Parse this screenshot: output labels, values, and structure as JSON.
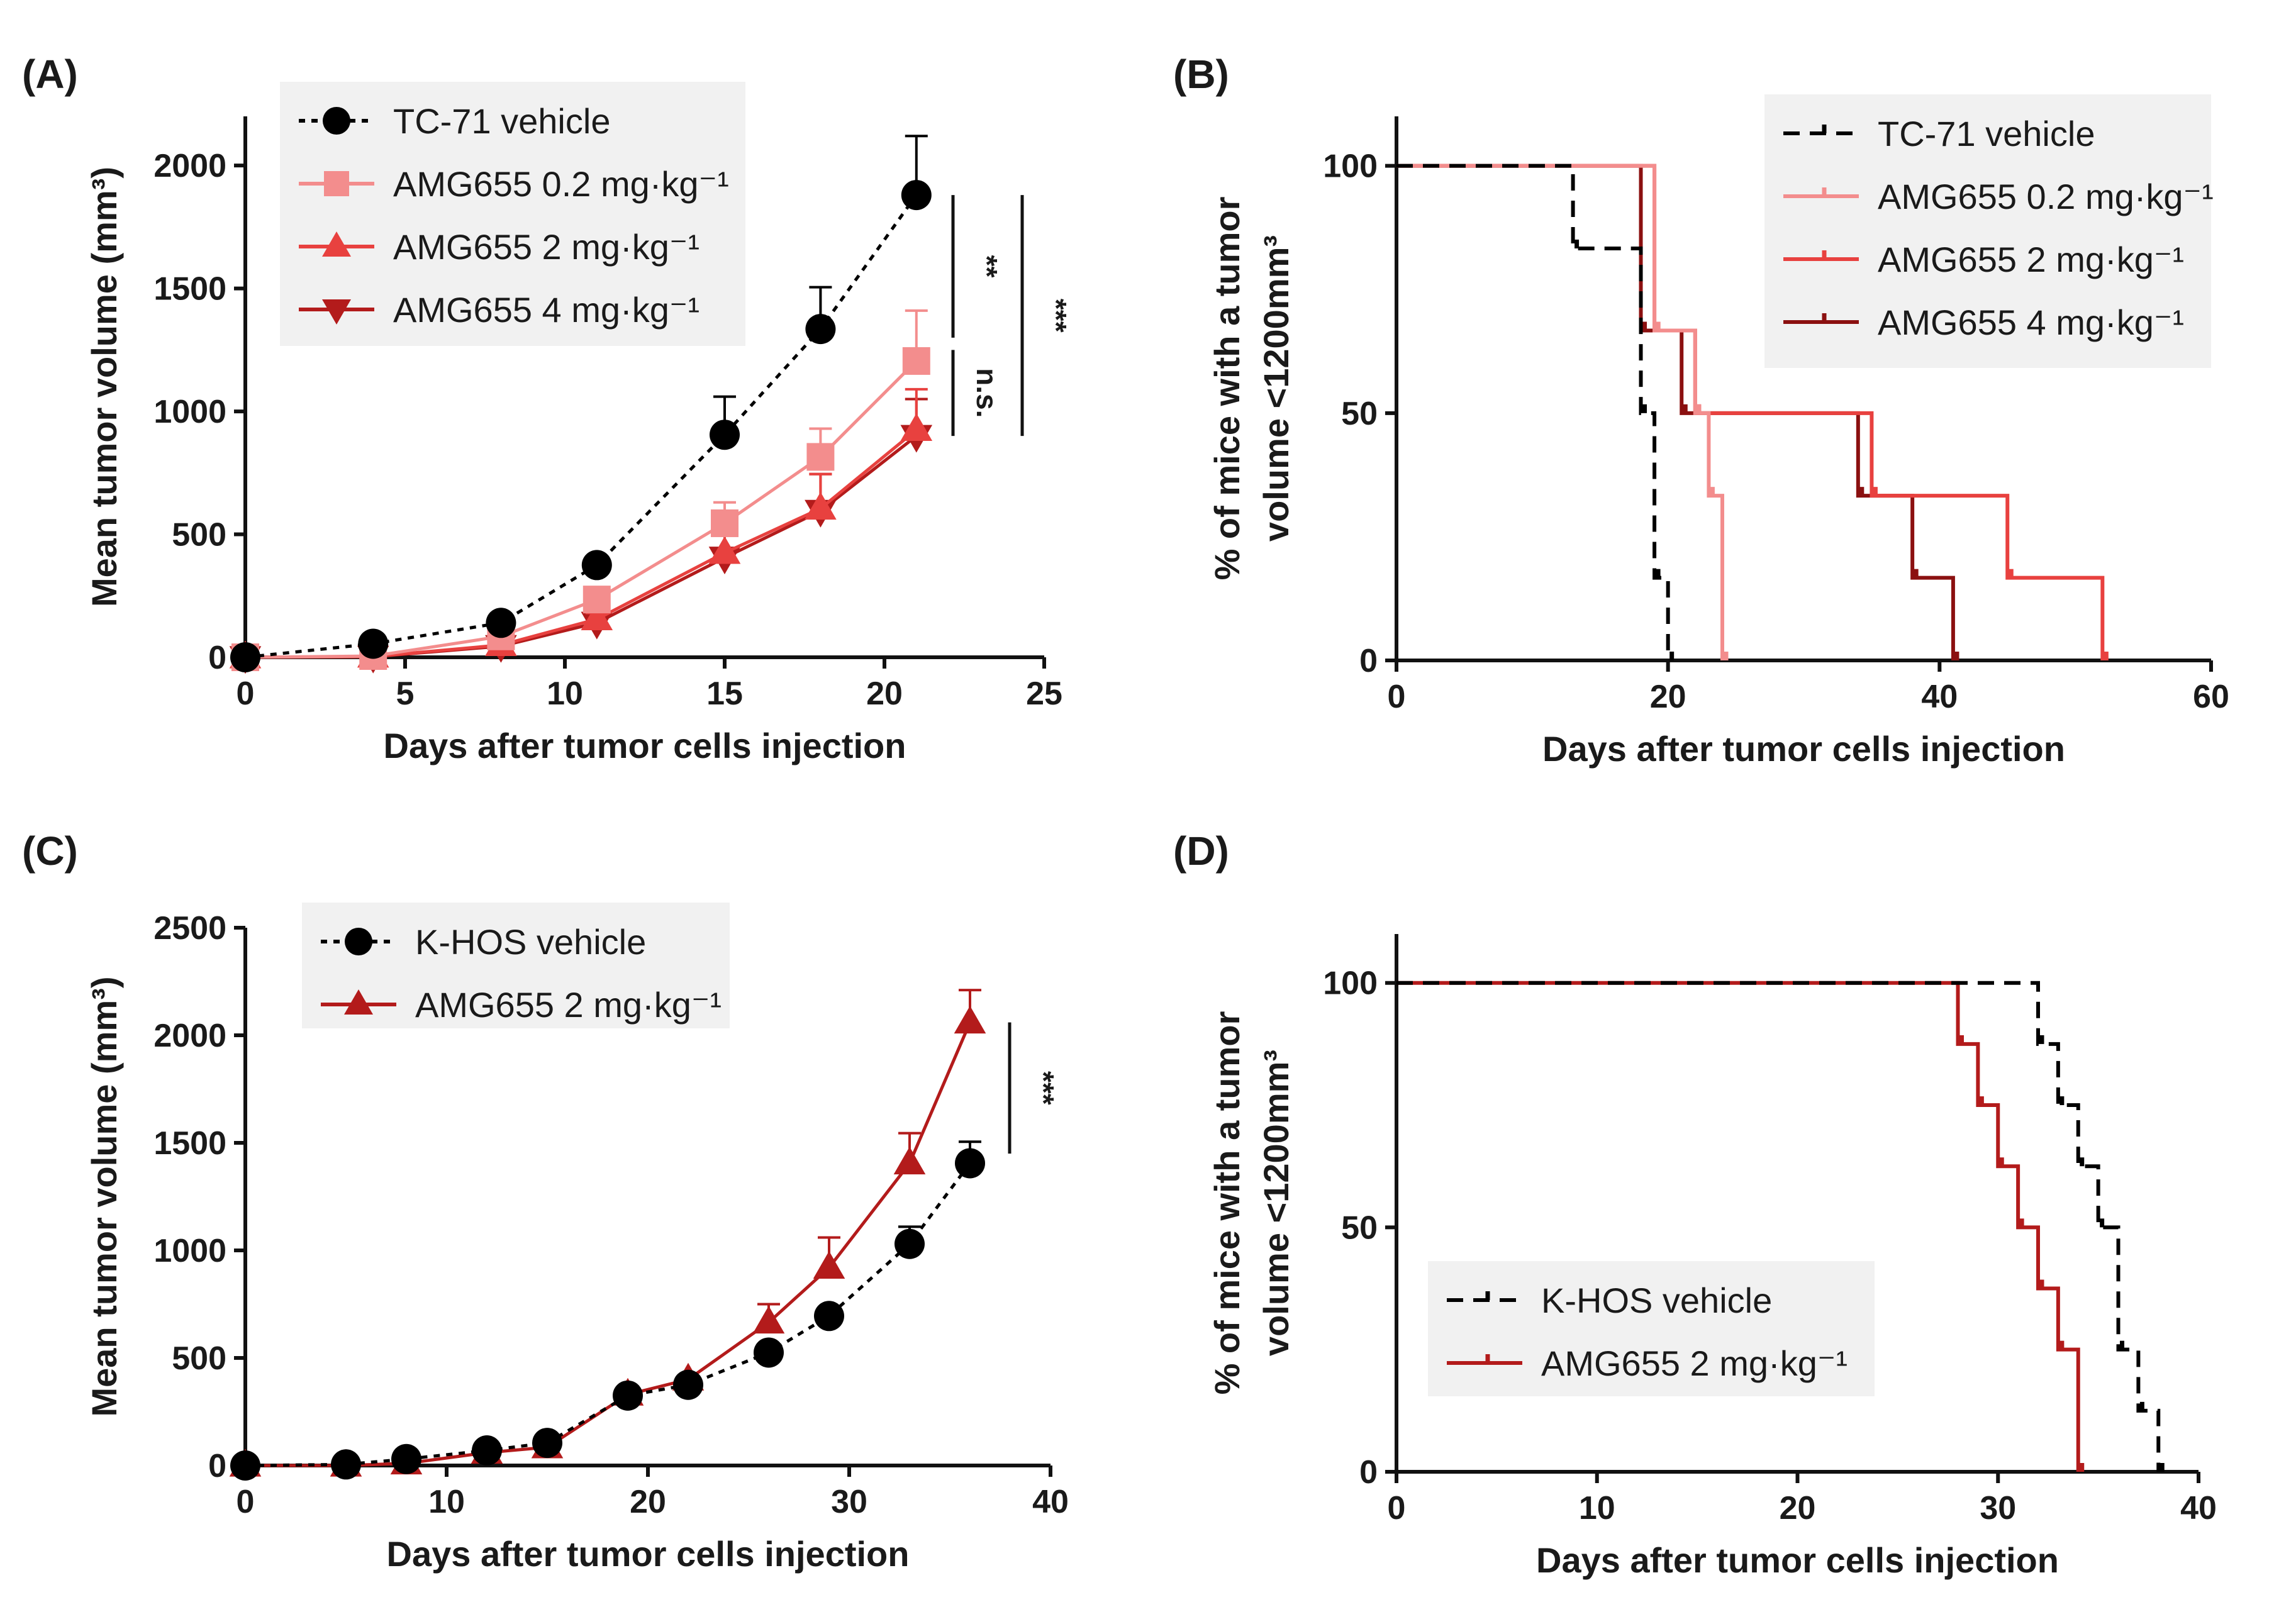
{
  "chart_data": [
    {
      "panel": "(A)",
      "type": "line",
      "title": "",
      "xlabel": "Days after tumor cells injection",
      "ylabel": "Mean tumor volume (mm³)",
      "xlim": [
        0,
        25
      ],
      "ylim": [
        0,
        2200
      ],
      "xticks": [
        0,
        5,
        10,
        15,
        20,
        25
      ],
      "yticks": [
        0,
        500,
        1000,
        1500,
        2000
      ],
      "legend_position": "top-left",
      "series": [
        {
          "name": "TC-71 vehicle",
          "color": "#000000",
          "marker": "circle",
          "dash": "dotted",
          "x": [
            0,
            4,
            8,
            11,
            15,
            18,
            21
          ],
          "y": [
            0,
            55,
            140,
            375,
            905,
            1335,
            1880
          ],
          "err": [
            0,
            8,
            15,
            20,
            155,
            170,
            240
          ]
        },
        {
          "name": "AMG655 0.2 mg·kg⁻¹",
          "color": "#f38d8d",
          "marker": "square",
          "dash": "solid",
          "x": [
            0,
            4,
            8,
            11,
            15,
            18,
            21
          ],
          "y": [
            0,
            5,
            85,
            235,
            545,
            815,
            1205
          ],
          "err": [
            0,
            5,
            15,
            30,
            85,
            115,
            205
          ]
        },
        {
          "name": "AMG655 2 mg·kg⁻¹",
          "color": "#e8413f",
          "marker": "triangle-up",
          "dash": "solid",
          "x": [
            0,
            4,
            8,
            11,
            15,
            18,
            21
          ],
          "y": [
            0,
            3,
            50,
            155,
            425,
            605,
            925
          ],
          "err": [
            0,
            3,
            10,
            25,
            90,
            140,
            165
          ]
        },
        {
          "name": "AMG655 4 mg·kg⁻¹",
          "color": "#b31b1b",
          "marker": "triangle-down",
          "dash": "solid",
          "x": [
            0,
            4,
            8,
            11,
            15,
            18,
            21
          ],
          "y": [
            0,
            2,
            45,
            140,
            405,
            595,
            900
          ],
          "err": [
            0,
            2,
            10,
            20,
            120,
            150,
            150
          ]
        }
      ],
      "annotations": [
        {
          "text": "**",
          "y_from": 1880,
          "y_to": 1300
        },
        {
          "text": "n.s.",
          "y_from": 1250,
          "y_to": 900
        },
        {
          "text": "***",
          "y_from": 1880,
          "y_to": 900
        }
      ]
    },
    {
      "panel": "(B)",
      "type": "line",
      "title": "",
      "xlabel": "Days after tumor cells injection",
      "ylabel_lines": [
        "% of mice with a tumor",
        "volume <1200mm³"
      ],
      "xlim": [
        0,
        60
      ],
      "ylim": [
        0,
        110
      ],
      "xticks": [
        0,
        20,
        40,
        60
      ],
      "yticks": [
        0,
        50,
        100
      ],
      "legend_position": "top-right",
      "series": [
        {
          "name": "TC-71 vehicle",
          "color": "#000000",
          "dash": "dashed",
          "x": [
            0,
            13,
            18,
            19,
            20
          ],
          "y": [
            100,
            83.3,
            50,
            16.7,
            0
          ]
        },
        {
          "name": "AMG655 0.2 mg·kg⁻¹",
          "color": "#f38d8d",
          "dash": "solid",
          "x": [
            0,
            19,
            22,
            23,
            24
          ],
          "y": [
            100,
            66.7,
            50,
            33.3,
            0
          ]
        },
        {
          "name": "AMG655 2 mg·kg⁻¹",
          "color": "#e8413f",
          "dash": "solid",
          "x": [
            0,
            19,
            22,
            35,
            45,
            52
          ],
          "y": [
            100,
            66.7,
            50,
            33.3,
            16.7,
            0
          ]
        },
        {
          "name": "AMG655 4 mg·kg⁻¹",
          "color": "#8b1010",
          "dash": "solid",
          "x": [
            0,
            18,
            21,
            34,
            38,
            41
          ],
          "y": [
            100,
            66.7,
            50,
            33.3,
            16.7,
            0
          ]
        }
      ]
    },
    {
      "panel": "(C)",
      "type": "line",
      "title": "",
      "xlabel": "Days after tumor cells injection",
      "ylabel": "Mean tumor volume (mm³)",
      "xlim": [
        0,
        40
      ],
      "ylim": [
        0,
        2500
      ],
      "xticks": [
        0,
        10,
        20,
        30,
        40
      ],
      "yticks": [
        0,
        500,
        1000,
        1500,
        2000,
        2500
      ],
      "legend_position": "top-left",
      "series": [
        {
          "name": "K-HOS vehicle",
          "color": "#000000",
          "marker": "circle",
          "dash": "dotted",
          "x": [
            0,
            5,
            8,
            12,
            15,
            19,
            22,
            26,
            29,
            33,
            36
          ],
          "y": [
            0,
            5,
            30,
            70,
            105,
            325,
            375,
            525,
            695,
            1030,
            1405
          ],
          "err": [
            0,
            0,
            0,
            0,
            0,
            0,
            0,
            0,
            0,
            80,
            100
          ]
        },
        {
          "name": "AMG655 2 mg·kg⁻¹",
          "color": "#b31b1b",
          "marker": "triangle-up",
          "dash": "solid",
          "x": [
            0,
            5,
            8,
            12,
            15,
            19,
            22,
            26,
            29,
            33,
            36
          ],
          "y": [
            0,
            0,
            10,
            60,
            85,
            330,
            400,
            665,
            920,
            1405,
            2060
          ],
          "err": [
            0,
            0,
            0,
            0,
            0,
            0,
            0,
            85,
            140,
            140,
            150
          ]
        }
      ],
      "annotations": [
        {
          "text": "***",
          "y_from": 2060,
          "y_to": 1450
        }
      ]
    },
    {
      "panel": "(D)",
      "type": "line",
      "title": "",
      "xlabel": "Days after tumor cells injection",
      "ylabel_lines": [
        "% of mice with a tumor",
        "volume <1200mm³"
      ],
      "xlim": [
        0,
        40
      ],
      "ylim": [
        0,
        110
      ],
      "xticks": [
        0,
        10,
        20,
        30,
        40
      ],
      "yticks": [
        0,
        50,
        100
      ],
      "legend_position": "bottom-left",
      "series": [
        {
          "name": "K-HOS vehicle",
          "color": "#000000",
          "dash": "dashed",
          "x": [
            0,
            32,
            33,
            34,
            35,
            36,
            37,
            38
          ],
          "y": [
            100,
            87.5,
            75,
            62.5,
            50,
            25,
            12.5,
            0
          ]
        },
        {
          "name": "AMG655 2 mg·kg⁻¹",
          "color": "#b31b1b",
          "dash": "solid",
          "x": [
            0,
            28,
            29,
            30,
            31,
            32,
            33,
            34
          ],
          "y": [
            100,
            87.5,
            75,
            62.5,
            50,
            37.5,
            25,
            0
          ]
        }
      ]
    }
  ]
}
